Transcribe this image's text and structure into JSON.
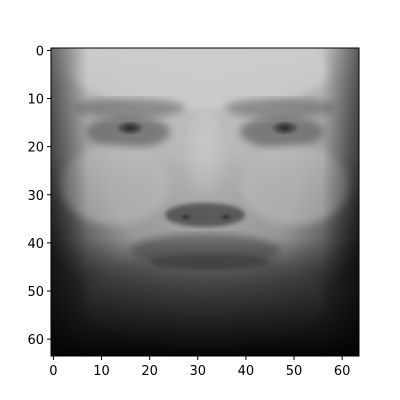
{
  "figure": {
    "image_description": "grayscale face, 64x64 pixels",
    "pixel_grid": [
      64,
      64
    ],
    "colormap": "gray"
  },
  "axes": {
    "x_ticks": [
      "0",
      "10",
      "20",
      "30",
      "40",
      "50",
      "60"
    ],
    "y_ticks": [
      "0",
      "10",
      "20",
      "30",
      "40",
      "50",
      "60"
    ],
    "x_range": [
      -0.5,
      63.5
    ],
    "y_range": [
      63.5,
      -0.5
    ]
  }
}
